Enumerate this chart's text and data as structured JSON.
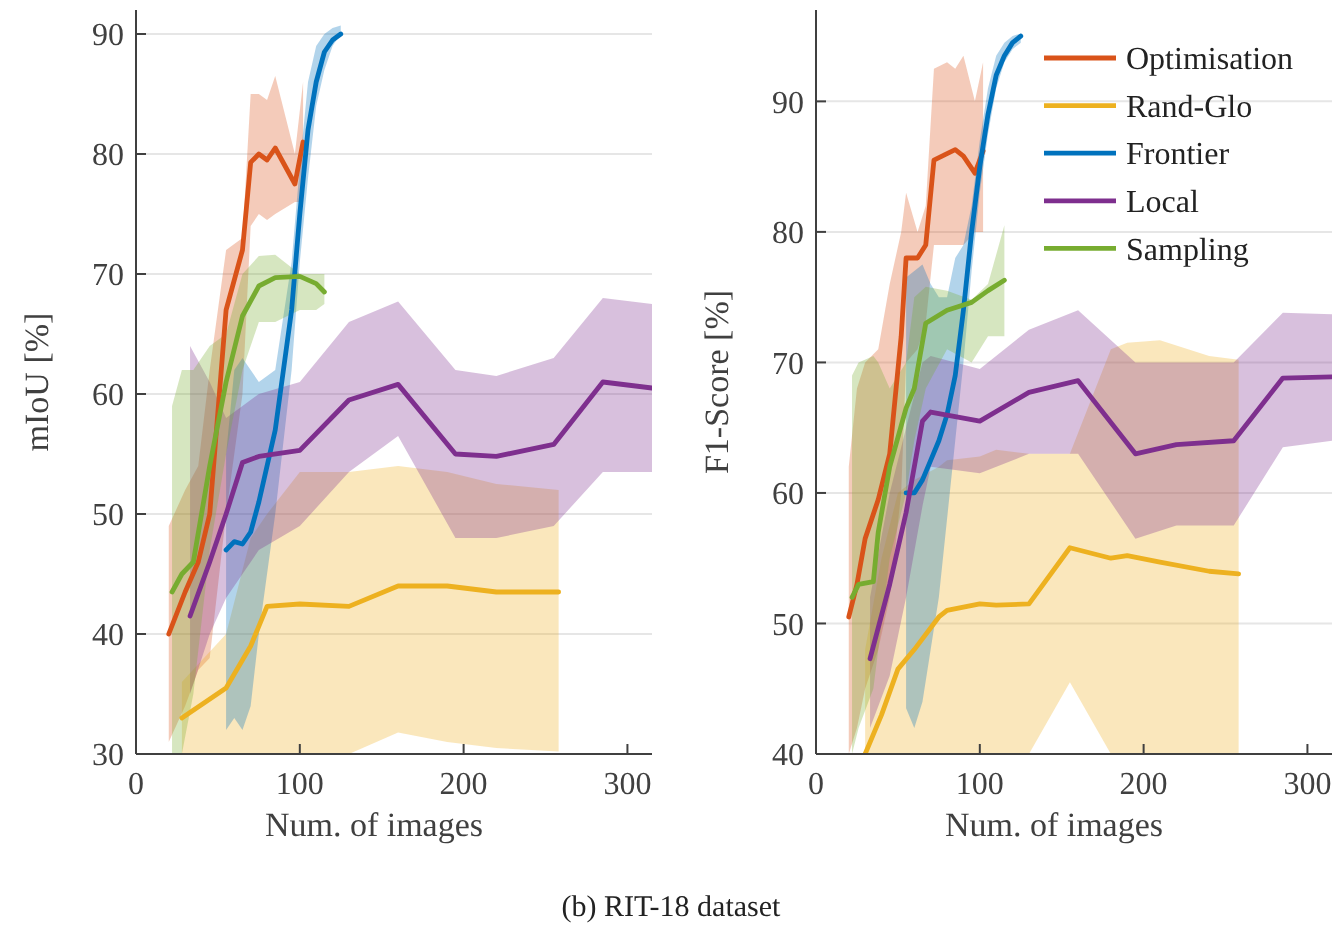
{
  "chart_data": [
    {
      "type": "line",
      "xlabel": "Num. of images",
      "ylabel": "mIoU [%]",
      "xlim": [
        0,
        315
      ],
      "ylim": [
        30,
        92
      ],
      "xticks": [
        0,
        100,
        200,
        300
      ],
      "yticks": [
        30,
        40,
        50,
        60,
        70,
        80,
        90
      ],
      "grid": "y",
      "annotations": [
        "(b) RIT-18 dataset"
      ],
      "series": [
        {
          "color": "#d95319",
          "x": [
            20,
            30,
            38,
            45,
            55,
            65,
            70,
            75,
            80,
            85,
            97,
            102
          ],
          "values": [
            40,
            43.5,
            46,
            50,
            67,
            72,
            79.3,
            80,
            79.5,
            80.5,
            77.5,
            81
          ],
          "lower": [
            31,
            34,
            37,
            38,
            50,
            60,
            74,
            75,
            74.5,
            75,
            76,
            76
          ],
          "upper": [
            49,
            52,
            54,
            62,
            72,
            73,
            85,
            85,
            84.5,
            86.5,
            80,
            86
          ]
        },
        {
          "color": "#edb120",
          "x": [
            28,
            55,
            70,
            80,
            100,
            130,
            160,
            190,
            220,
            258
          ],
          "values": [
            33,
            35.5,
            39,
            42.3,
            42.5,
            42.3,
            44,
            44,
            43.5,
            43.5
          ],
          "lower": [
            30,
            30,
            30,
            30,
            30,
            30,
            31.8,
            31,
            30.5,
            30.2
          ],
          "upper": [
            36,
            40,
            48,
            50,
            53.5,
            53.5,
            54,
            53.5,
            52.5,
            52
          ]
        },
        {
          "color": "#0072bd",
          "x": [
            55,
            60,
            65,
            70,
            75,
            85,
            95,
            100,
            105,
            110,
            115,
            120,
            125
          ],
          "values": [
            47,
            47.7,
            47.5,
            48.5,
            51,
            57,
            67,
            75,
            82,
            86,
            88.5,
            89.5,
            90
          ],
          "lower": [
            32,
            33,
            32,
            34,
            40,
            50,
            62,
            71,
            78,
            84,
            87,
            89,
            90
          ],
          "upper": [
            55,
            62,
            63,
            62,
            61,
            62,
            71,
            79,
            86,
            89,
            90,
            90.5,
            90.7
          ]
        },
        {
          "color": "#7e2f8e",
          "x": [
            33,
            45,
            55,
            65,
            75,
            100,
            130,
            160,
            195,
            220,
            255,
            285,
            315
          ],
          "values": [
            41.5,
            46,
            50,
            54.3,
            54.8,
            55.3,
            59.5,
            60.8,
            55,
            54.8,
            55.8,
            61,
            60.5
          ],
          "lower": [
            35,
            40,
            43,
            45,
            47,
            49,
            53.5,
            56.5,
            48,
            48,
            49,
            53.5,
            53.5
          ],
          "upper": [
            64,
            61,
            58,
            59,
            60,
            61,
            66,
            67.7,
            62,
            61.5,
            63,
            68,
            67.5
          ]
        },
        {
          "color": "#77ac30",
          "x": [
            22,
            28,
            35,
            45,
            55,
            65,
            75,
            85,
            100,
            110,
            115
          ],
          "values": [
            43.5,
            45,
            46,
            54,
            61,
            66.5,
            69,
            69.7,
            69.8,
            69.2,
            68.5
          ],
          "lower": [
            30,
            30,
            35,
            47,
            55,
            62,
            66,
            66,
            67,
            67,
            67.5
          ],
          "upper": [
            59,
            62,
            62,
            64,
            65,
            70,
            71.5,
            71.6,
            70,
            70,
            70
          ]
        }
      ]
    },
    {
      "type": "line",
      "xlabel": "Num. of images",
      "ylabel": "F1-Score [%]",
      "xlim": [
        0,
        315
      ],
      "ylim": [
        40,
        97
      ],
      "xticks": [
        0,
        100,
        200,
        300
      ],
      "yticks": [
        40,
        50,
        60,
        70,
        80,
        90
      ],
      "grid": "y",
      "legend": "top right",
      "series": [
        {
          "name": "Optimisation",
          "color": "#d95319",
          "x": [
            20,
            25,
            30,
            38,
            45,
            52,
            55,
            62,
            67,
            72,
            80,
            85,
            90,
            97,
            102
          ],
          "values": [
            50.5,
            53,
            56.5,
            59.5,
            63,
            72,
            78,
            78,
            79,
            85.5,
            86,
            86.3,
            85.8,
            84.5,
            86.2
          ],
          "lower": [
            40,
            42,
            45,
            48,
            52,
            60,
            70,
            71,
            73,
            79,
            79,
            79,
            79,
            80,
            80
          ],
          "upper": [
            62,
            68,
            70,
            71,
            76,
            80,
            83,
            80,
            82,
            92.5,
            93,
            92.5,
            93.5,
            90,
            93
          ]
        },
        {
          "name": "Rand-Glo",
          "color": "#edb120",
          "x": [
            30,
            40,
            50,
            60,
            75,
            80,
            100,
            110,
            130,
            155,
            180,
            190,
            210,
            240,
            258
          ],
          "values": [
            40,
            43,
            46.5,
            48,
            50.5,
            51,
            51.5,
            51.4,
            51.5,
            55.8,
            55,
            55.2,
            54.7,
            54,
            53.8
          ],
          "lower": [
            40,
            40,
            40,
            40,
            40,
            40,
            40,
            40,
            40,
            45.5,
            40,
            40,
            40,
            40,
            40
          ],
          "upper": [
            48,
            55,
            60,
            61,
            62,
            62.5,
            62.8,
            63.3,
            63,
            63,
            71,
            71.5,
            71.7,
            70.5,
            70.2
          ]
        },
        {
          "name": "Frontier",
          "color": "#0072bd",
          "x": [
            55,
            60,
            65,
            70,
            75,
            80,
            85,
            90,
            95,
            100,
            105,
            110,
            115,
            120,
            125
          ],
          "values": [
            60,
            60,
            61,
            62.5,
            64,
            66,
            69,
            74,
            80,
            85,
            89,
            92,
            93.5,
            94.5,
            95
          ],
          "lower": [
            43.5,
            42,
            44,
            48,
            52,
            58,
            64,
            70,
            77,
            83,
            87.5,
            91,
            93,
            94,
            94.5
          ],
          "upper": [
            76.5,
            77,
            77.5,
            76,
            75,
            75,
            78,
            79,
            82,
            87,
            91,
            93.5,
            94.5,
            95,
            95.2
          ]
        },
        {
          "name": "Local",
          "color": "#7e2f8e",
          "x": [
            33,
            45,
            55,
            65,
            70,
            100,
            130,
            160,
            195,
            220,
            255,
            285,
            315
          ],
          "values": [
            47.3,
            53,
            58.5,
            65.5,
            66.2,
            65.5,
            67.7,
            68.6,
            63,
            63.7,
            64,
            68.8,
            68.9
          ],
          "lower": [
            42,
            46,
            52,
            59,
            62,
            61.5,
            63,
            63,
            56.5,
            57.5,
            57.5,
            63.5,
            64
          ],
          "upper": [
            52,
            60,
            65,
            70,
            70.5,
            69.5,
            72.5,
            74,
            70,
            70,
            70,
            73.8,
            73.7
          ]
        },
        {
          "name": "Sampling",
          "color": "#77ac30",
          "x": [
            22,
            26,
            35,
            38,
            45,
            55,
            60,
            67,
            80,
            95,
            105,
            115
          ],
          "values": [
            52,
            53,
            53.2,
            57,
            62,
            66.5,
            68,
            73,
            74,
            74.6,
            75.5,
            76.3
          ],
          "lower": [
            40,
            42,
            45,
            48,
            55,
            60,
            64,
            68,
            71,
            70,
            72,
            72
          ],
          "upper": [
            69,
            70,
            70.5,
            70,
            68,
            70,
            75,
            75.8,
            75.5,
            74.8,
            76,
            80.5
          ]
        }
      ]
    }
  ]
}
